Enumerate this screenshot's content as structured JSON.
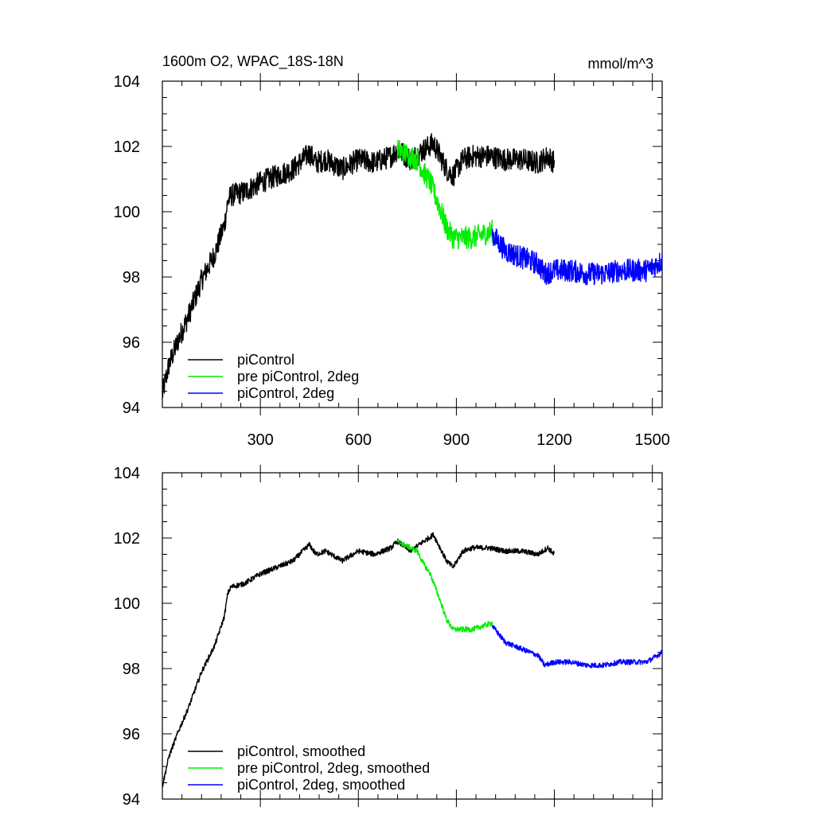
{
  "figure": {
    "title_left": "1600m O2, WPAC_18S-18N",
    "title_right": "mmol/m^3"
  },
  "colors": {
    "picontrol": "#000000",
    "pre_2deg": "#00ee00",
    "picontrol_2deg": "#0000ff"
  },
  "chart_data": [
    {
      "type": "line",
      "title": "1600m O2, WPAC_18S-18N",
      "units": "mmol/m^3",
      "xlim": [
        0,
        1530
      ],
      "ylim": [
        94,
        104
      ],
      "yticks": [
        94,
        96,
        98,
        100,
        102,
        104
      ],
      "xticks": [
        300,
        600,
        900,
        1200,
        1500
      ],
      "x_tick_labels_visible": true,
      "legend_position": "bottom-left",
      "noise": 0.35,
      "series": [
        {
          "name": "piControl",
          "color_key": "picontrol",
          "x": [
            0,
            20,
            50,
            80,
            120,
            160,
            190,
            200,
            210,
            250,
            300,
            350,
            400,
            450,
            470,
            500,
            550,
            600,
            650,
            700,
            720,
            760,
            800,
            830,
            840,
            870,
            890,
            920,
            950,
            1000,
            1050,
            1100,
            1150,
            1180,
            1200
          ],
          "values": [
            94.4,
            95.3,
            96.1,
            96.8,
            97.9,
            98.7,
            99.6,
            100.3,
            100.5,
            100.6,
            100.9,
            101.1,
            101.3,
            101.8,
            101.5,
            101.6,
            101.3,
            101.6,
            101.5,
            101.7,
            101.9,
            101.6,
            101.9,
            102.1,
            101.9,
            101.3,
            101.1,
            101.6,
            101.7,
            101.7,
            101.6,
            101.6,
            101.5,
            101.7,
            101.5
          ]
        },
        {
          "name": "pre piControl, 2deg",
          "color_key": "pre_2deg",
          "x": [
            720,
            760,
            780,
            800,
            820,
            850,
            870,
            890,
            920,
            950,
            980,
            1010
          ],
          "values": [
            101.9,
            101.7,
            101.6,
            101.2,
            100.9,
            100.1,
            99.5,
            99.2,
            99.2,
            99.2,
            99.3,
            99.4
          ]
        },
        {
          "name": "piControl, 2deg",
          "color_key": "picontrol_2deg",
          "x": [
            1010,
            1050,
            1100,
            1150,
            1170,
            1200,
            1250,
            1300,
            1350,
            1400,
            1450,
            1480,
            1500,
            1530
          ],
          "values": [
            99.3,
            98.8,
            98.6,
            98.4,
            98.1,
            98.2,
            98.2,
            98.1,
            98.1,
            98.2,
            98.2,
            98.2,
            98.3,
            98.5
          ]
        }
      ]
    },
    {
      "type": "line",
      "title": "",
      "units": "",
      "xlim": [
        0,
        1530
      ],
      "ylim": [
        94,
        104
      ],
      "yticks": [
        94,
        96,
        98,
        100,
        102,
        104
      ],
      "xticks": [
        300,
        600,
        900,
        1200,
        1500
      ],
      "x_tick_labels_visible": false,
      "legend_position": "bottom-left",
      "noise": 0.08,
      "series": [
        {
          "name": "piControl, smoothed",
          "color_key": "picontrol",
          "x": [
            0,
            20,
            50,
            80,
            120,
            160,
            190,
            200,
            210,
            250,
            300,
            350,
            400,
            450,
            470,
            500,
            550,
            600,
            650,
            700,
            720,
            760,
            800,
            830,
            840,
            870,
            890,
            920,
            950,
            1000,
            1050,
            1100,
            1150,
            1180,
            1200
          ],
          "values": [
            94.4,
            95.3,
            96.1,
            96.8,
            97.9,
            98.7,
            99.6,
            100.3,
            100.5,
            100.6,
            100.9,
            101.1,
            101.3,
            101.8,
            101.5,
            101.6,
            101.3,
            101.6,
            101.5,
            101.7,
            101.9,
            101.6,
            101.9,
            102.1,
            101.9,
            101.3,
            101.1,
            101.6,
            101.7,
            101.7,
            101.6,
            101.6,
            101.5,
            101.7,
            101.5
          ]
        },
        {
          "name": "pre piControl, 2deg, smoothed",
          "color_key": "pre_2deg",
          "x": [
            720,
            760,
            780,
            800,
            820,
            850,
            870,
            890,
            920,
            950,
            980,
            1010
          ],
          "values": [
            101.9,
            101.7,
            101.6,
            101.2,
            100.9,
            100.1,
            99.5,
            99.2,
            99.2,
            99.2,
            99.3,
            99.4
          ]
        },
        {
          "name": "piControl, 2deg, smoothed",
          "color_key": "picontrol_2deg",
          "x": [
            1010,
            1050,
            1100,
            1150,
            1170,
            1200,
            1250,
            1300,
            1350,
            1400,
            1450,
            1480,
            1500,
            1530
          ],
          "values": [
            99.3,
            98.8,
            98.6,
            98.4,
            98.1,
            98.2,
            98.2,
            98.1,
            98.1,
            98.2,
            98.2,
            98.2,
            98.3,
            98.5
          ]
        }
      ]
    }
  ]
}
